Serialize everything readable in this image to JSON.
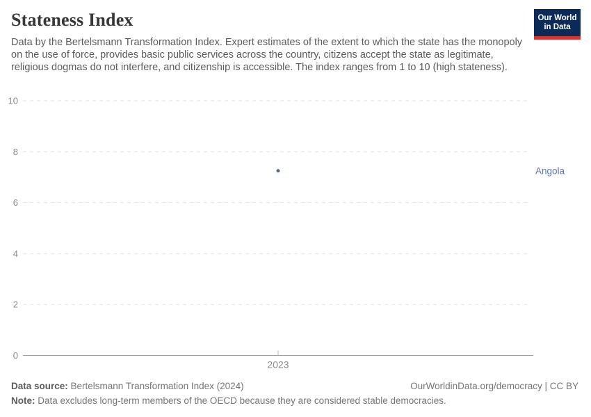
{
  "header": {
    "title": "Stateness Index",
    "subtitle": "Data by the Bertelsmann Transformation Index. Expert estimates of the extent to which the state has the monopoly on the use of force, provides basic public services across the country, citizens accept the state as legitimate, religious dogmas do not interfere, and citizenship is accessible. The index ranges from 1 to 10 (high stateness).",
    "logo": {
      "line1": "Our World",
      "line2": "in Data"
    }
  },
  "chart_data": {
    "type": "scatter",
    "title": "Stateness Index",
    "x": [
      2023
    ],
    "series": [
      {
        "name": "Angola",
        "values": [
          7.25
        ]
      }
    ],
    "xlabel": "",
    "ylabel": "",
    "ylim": [
      0,
      10
    ],
    "yticks": [
      0,
      2,
      4,
      6,
      8,
      10
    ],
    "xticks": [
      "2023"
    ],
    "grid": "horizontal-dashed",
    "legend_position": "right-entity-label",
    "colors": {
      "point": "#4c6a9c",
      "entity_label": "#5b74b8",
      "gridline": "#e0e0e0",
      "zero_line": "#a1a1a1",
      "tick_label": "#8b8b8b",
      "tick_mark": "#b5b5b5"
    }
  },
  "footer": {
    "source_label": "Data source:",
    "source_text": " Bertelsmann Transformation Index (2024)",
    "credit": "OurWorldinData.org/democracy | CC BY",
    "note_label": "Note:",
    "note_text": " Data excludes long-term members of the OECD because they are considered stable democracies."
  }
}
